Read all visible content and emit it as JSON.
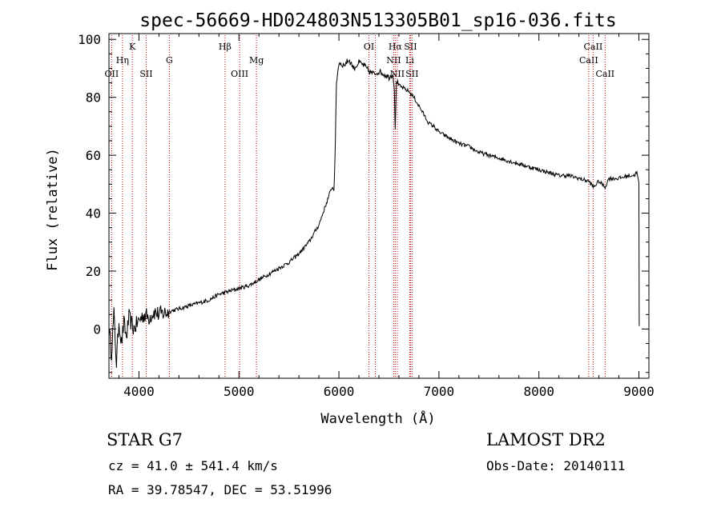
{
  "chart_data": {
    "type": "line",
    "title": "spec-56669-HD024803N513305B01_sp16-036.fits",
    "xlabel": "Wavelength (Å)",
    "ylabel": "Flux (relative)",
    "xlim": [
      3700,
      9100
    ],
    "ylim": [
      -17,
      102
    ],
    "xticks": [
      4000,
      5000,
      6000,
      7000,
      8000,
      9000
    ],
    "xtick_labels": [
      "4000",
      "5000",
      "6000",
      "7000",
      "8000",
      "9000"
    ],
    "yticks": [
      0,
      20,
      40,
      60,
      80,
      100
    ],
    "ytick_labels": [
      "0",
      "20",
      "40",
      "60",
      "80",
      "100"
    ],
    "grid": false,
    "line_color": "#000000",
    "marker_line_color": "#cc0000",
    "series": [
      {
        "x": [
          3700,
          3725,
          3750,
          3775,
          3800,
          3825,
          3850,
          3875,
          3900,
          3950,
          4000,
          4050,
          4100,
          4150,
          4200,
          4300,
          4400,
          4500,
          4600,
          4700,
          4800,
          4900,
          5000,
          5100,
          5200,
          5300,
          5400,
          5500,
          5600,
          5700,
          5750,
          5800,
          5850,
          5900,
          5930,
          5950,
          5965,
          5975,
          6000,
          6050,
          6100,
          6150,
          6200,
          6250,
          6300,
          6350,
          6400,
          6450,
          6500,
          6540,
          6555,
          6563,
          6575,
          6600,
          6650,
          6700,
          6750,
          6800,
          6850,
          6900,
          6950,
          7000,
          7100,
          7200,
          7300,
          7400,
          7500,
          7600,
          7700,
          7800,
          7900,
          8000,
          8100,
          8200,
          8300,
          8400,
          8500,
          8545,
          8600,
          8662,
          8700,
          8800,
          8900,
          8950,
          8980,
          9000,
          9003
        ],
        "y": [
          0,
          -8,
          5,
          -12,
          3,
          -5,
          2,
          -3,
          4,
          0,
          3,
          5,
          4,
          6,
          5,
          6,
          7,
          8,
          9,
          10,
          12,
          13,
          14,
          15,
          17,
          19,
          21,
          23,
          26,
          30,
          33,
          36,
          41,
          46,
          49,
          48,
          65,
          85,
          92,
          91,
          93,
          90,
          92,
          91,
          89,
          88,
          89,
          88,
          87,
          88,
          83,
          68,
          86,
          84,
          83,
          82,
          80,
          77,
          74,
          71,
          70,
          68,
          66,
          64,
          63,
          61,
          60,
          59,
          58,
          57,
          56,
          55,
          54,
          53,
          53,
          52,
          51,
          49,
          51,
          49,
          52,
          52,
          53,
          53,
          54,
          50,
          1
        ]
      }
    ],
    "spectral_lines": [
      {
        "label": "OII",
        "wavelength": 3727,
        "row": 3
      },
      {
        "label": "Hη",
        "wavelength": 3835,
        "row": 2
      },
      {
        "label": "K",
        "wavelength": 3934,
        "row": 1
      },
      {
        "label": "SII",
        "wavelength": 4072,
        "row": 3
      },
      {
        "label": "G",
        "wavelength": 4304,
        "row": 2
      },
      {
        "label": "Hβ",
        "wavelength": 4861,
        "row": 1
      },
      {
        "label": "OIII",
        "wavelength": 5007,
        "row": 3
      },
      {
        "label": "Mg",
        "wavelength": 5175,
        "row": 2
      },
      {
        "label": "OI",
        "wavelength": 6300,
        "row": 1
      },
      {
        "label": "",
        "wavelength": 6364,
        "row": 1
      },
      {
        "label": "NII",
        "wavelength": 6548,
        "row": 2
      },
      {
        "label": "Hα",
        "wavelength": 6563,
        "row": 1
      },
      {
        "label": "NII",
        "wavelength": 6584,
        "row": 3
      },
      {
        "label": "Li",
        "wavelength": 6708,
        "row": 2
      },
      {
        "label": "SII",
        "wavelength": 6716,
        "row": 1
      },
      {
        "label": "SII",
        "wavelength": 6731,
        "row": 3
      },
      {
        "label": "CaII",
        "wavelength": 8498,
        "row": 2
      },
      {
        "label": "CaII",
        "wavelength": 8542,
        "row": 1
      },
      {
        "label": "CaII",
        "wavelength": 8662,
        "row": 3
      }
    ]
  },
  "info": {
    "star_class": "STAR    G7",
    "survey": "LAMOST DR2",
    "cz": "cz = 41.0 ± 541.4 km/s",
    "obs_date": "Obs-Date: 20140111",
    "radec": "RA =  39.78547, DEC =  53.51996"
  }
}
